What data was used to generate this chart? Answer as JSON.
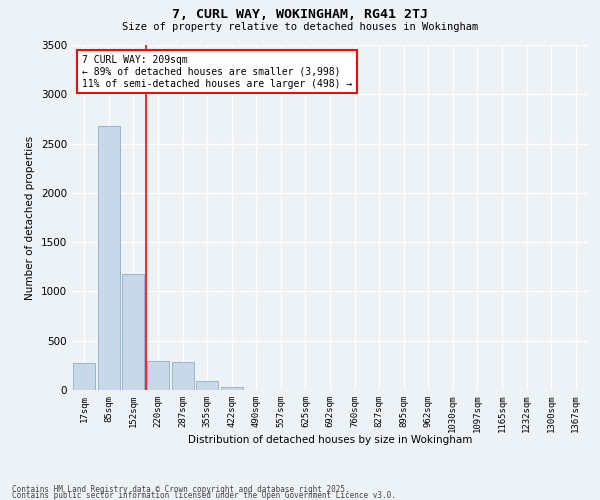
{
  "title": "7, CURL WAY, WOKINGHAM, RG41 2TJ",
  "subtitle": "Size of property relative to detached houses in Wokingham",
  "xlabel": "Distribution of detached houses by size in Wokingham",
  "ylabel": "Number of detached properties",
  "categories": [
    "17sqm",
    "85sqm",
    "152sqm",
    "220sqm",
    "287sqm",
    "355sqm",
    "422sqm",
    "490sqm",
    "557sqm",
    "625sqm",
    "692sqm",
    "760sqm",
    "827sqm",
    "895sqm",
    "962sqm",
    "1030sqm",
    "1097sqm",
    "1165sqm",
    "1232sqm",
    "1300sqm",
    "1367sqm"
  ],
  "values": [
    270,
    2680,
    1175,
    290,
    285,
    95,
    30,
    0,
    0,
    0,
    0,
    0,
    0,
    0,
    0,
    0,
    0,
    0,
    0,
    0,
    0
  ],
  "bar_color": "#c8d8e8",
  "bar_edge_color": "#8aafc8",
  "vline_color": "red",
  "annotation_text": "7 CURL WAY: 209sqm\n← 89% of detached houses are smaller (3,998)\n11% of semi-detached houses are larger (498) →",
  "annotation_box_color": "red",
  "ylim": [
    0,
    3500
  ],
  "yticks": [
    0,
    500,
    1000,
    1500,
    2000,
    2500,
    3000,
    3500
  ],
  "background_color": "#edf2f7",
  "grid_color": "#ffffff",
  "footer_line1": "Contains HM Land Registry data © Crown copyright and database right 2025.",
  "footer_line2": "Contains public sector information licensed under the Open Government Licence v3.0."
}
